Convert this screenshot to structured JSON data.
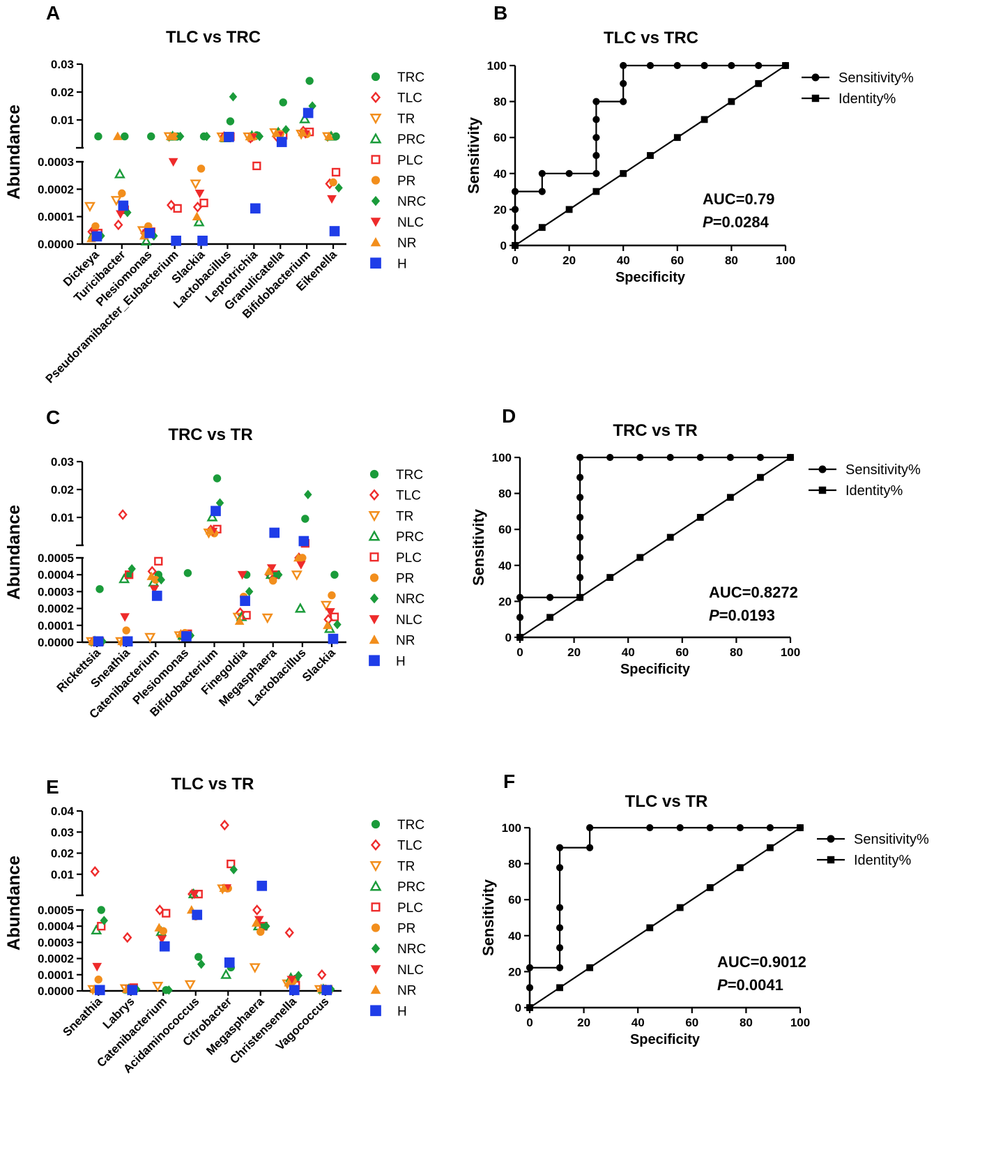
{
  "colors": {
    "TRC": "#1a9b3a",
    "TLC": "#ee2b2b",
    "TR": "#f28e1c",
    "PRC": "#1a9b3a",
    "PLC": "#ee2b2b",
    "PR": "#f28e1c",
    "NRC": "#1a9b3a",
    "NLC": "#ee2b2b",
    "NR": "#f28e1c",
    "H": "#1f3de8",
    "axis": "#000000"
  },
  "legend_groups": [
    {
      "name": "TRC",
      "shape": "circle-filled"
    },
    {
      "name": "TLC",
      "shape": "diamond-open"
    },
    {
      "name": "TR",
      "shape": "triangle-down-open"
    },
    {
      "name": "PRC",
      "shape": "triangle-up-open"
    },
    {
      "name": "PLC",
      "shape": "square-open"
    },
    {
      "name": "PR",
      "shape": "circle-filled"
    },
    {
      "name": "NRC",
      "shape": "diamond-filled"
    },
    {
      "name": "NLC",
      "shape": "triangle-down-filled"
    },
    {
      "name": "NR",
      "shape": "triangle-up-filled"
    },
    {
      "name": "H",
      "shape": "square-filled"
    }
  ],
  "panels": {
    "A": {
      "letter": "A",
      "title": "TLC vs TRC"
    },
    "B": {
      "letter": "B",
      "title": "TLC vs TRC",
      "auc": "AUC=0.79",
      "p_prefix": "P",
      "p_value": "=0.0284"
    },
    "C": {
      "letter": "C",
      "title": "TRC vs TR"
    },
    "D": {
      "letter": "D",
      "title": "TRC vs TR",
      "auc": "AUC=0.8272",
      "p_prefix": "P",
      "p_value": "=0.0193"
    },
    "E": {
      "letter": "E",
      "title": "TLC vs TR"
    },
    "F": {
      "letter": "F",
      "title": "TLC vs TR",
      "auc": "AUC=0.9012",
      "p_prefix": "P",
      "p_value": "=0.0041"
    }
  },
  "chart_data": [
    {
      "panel": "A",
      "type": "scatter",
      "title": "TLC vs TRC",
      "ylabel": "Abundance",
      "categories": [
        "Dickeya",
        "Turicibacter",
        "Plesiomonas",
        "Pseudoramibacter_Eubacterium",
        "Slackia",
        "Lactobacillus",
        "Leptotrichia",
        "Granulicatella",
        "Bifidobacterium",
        "Eikenella"
      ],
      "y_axis": {
        "lower_range": [
          0,
          0.0003
        ],
        "lower_ticks": [
          "0.0000",
          "0.0001",
          "0.0002",
          "0.0003"
        ],
        "upper_range": [
          0,
          0.03
        ],
        "upper_ticks": [
          "0.01",
          "0.02",
          "0.03"
        ]
      },
      "series": {
        "TRC": [
          0.0041,
          0.0041,
          0.0041,
          0.0041,
          0.0041,
          0.0095,
          0.0045,
          0.0163,
          0.024,
          0.0041
        ],
        "TLC": [
          4.5e-05,
          7e-05,
          4e-05,
          0.000142,
          0.000135,
          0.004,
          0.0035,
          0.004,
          0.006,
          0.00022
        ],
        "TR": [
          0.000138,
          0.00016,
          5e-05,
          0.0041,
          0.00022,
          0.004,
          0.004,
          0.0055,
          0.005,
          0.0041
        ],
        "PRC": [
          3.5e-05,
          0.000255,
          1e-05,
          0.0041,
          8e-05,
          0.0035,
          0.0043,
          0.0055,
          0.0103,
          0.0041
        ],
        "PLC": [
          4e-05,
          0.000125,
          4.5e-05,
          0.00013,
          0.00015,
          0.004,
          0.000285,
          0.0045,
          0.0057,
          0.000262
        ],
        "PR": [
          6.5e-05,
          0.000185,
          6.5e-05,
          0.0041,
          0.000275,
          0.0037,
          0.004,
          0.005,
          0.0049,
          0.000225
        ],
        "NRC": [
          3e-05,
          0.000115,
          3e-05,
          0.0041,
          0.0041,
          0.0183,
          0.0041,
          0.0065,
          0.015,
          0.000205
        ],
        "NLC": [
          4e-05,
          0.00011,
          4e-05,
          0.0003,
          0.000185,
          0.0041,
          0.0038,
          0.0045,
          0.005,
          0.000165
        ],
        "NR": [
          2e-05,
          0.0041,
          3e-05,
          0.0041,
          0.0001,
          0.0035,
          0.004,
          0.0052,
          0.0055,
          0.0041
        ],
        "H": [
          2.8e-05,
          0.00014,
          4e-05,
          1.2e-05,
          1.2e-05,
          0.0039,
          0.00013,
          0.0021,
          0.0125,
          4.7e-05
        ]
      }
    },
    {
      "panel": "B",
      "type": "line",
      "title": "TLC vs TRC",
      "xlabel": "Specificity",
      "ylabel": "Sensitivity",
      "xlim": [
        0,
        100
      ],
      "ylim": [
        0,
        100
      ],
      "ticks": [
        "0",
        "20",
        "40",
        "60",
        "80",
        "100"
      ],
      "legend": [
        "Sensitivity%",
        "Identity%"
      ],
      "roc": [
        [
          0,
          0
        ],
        [
          0,
          10
        ],
        [
          0,
          20
        ],
        [
          0,
          30
        ],
        [
          10,
          30
        ],
        [
          10,
          40
        ],
        [
          20,
          40
        ],
        [
          30,
          40
        ],
        [
          30,
          50
        ],
        [
          30,
          60
        ],
        [
          30,
          70
        ],
        [
          30,
          80
        ],
        [
          40,
          80
        ],
        [
          40,
          90
        ],
        [
          40,
          100
        ],
        [
          50,
          100
        ],
        [
          60,
          100
        ],
        [
          70,
          100
        ],
        [
          80,
          100
        ],
        [
          90,
          100
        ],
        [
          100,
          100
        ]
      ],
      "identity": [
        [
          0,
          0
        ],
        [
          10,
          10
        ],
        [
          20,
          20
        ],
        [
          30,
          30
        ],
        [
          40,
          40
        ],
        [
          50,
          50
        ],
        [
          60,
          60
        ],
        [
          70,
          70
        ],
        [
          80,
          80
        ],
        [
          90,
          90
        ],
        [
          100,
          100
        ]
      ]
    },
    {
      "panel": "C",
      "type": "scatter",
      "title": "TRC vs TR",
      "ylabel": "Abundance",
      "categories": [
        "Rickettsia",
        "Sneathia",
        "Catenibacterium",
        "Plesiomonas",
        "Bifidobacterium",
        "Finegoldia",
        "Megasphaera",
        "Lactobacillus",
        "Slackia"
      ],
      "y_axis": {
        "lower_range": [
          0,
          0.0005
        ],
        "lower_ticks": [
          "0.0000",
          "0.0001",
          "0.0002",
          "0.0003",
          "0.0004",
          "0.0005"
        ],
        "upper_range": [
          0,
          0.03
        ],
        "upper_ticks": [
          "0.01",
          "0.02",
          "0.03"
        ]
      },
      "series": {
        "TRC": [
          0.000315,
          0.0004,
          0.0004,
          0.00041,
          0.024,
          0.0004,
          0.0004,
          0.0095,
          0.0004
        ],
        "TLC": [
          5e-06,
          0.011,
          0.00042,
          4e-05,
          0.0055,
          0.000175,
          0.0004,
          0.0005,
          0.000135
        ],
        "TR": [
          5e-06,
          5e-06,
          3e-05,
          4e-05,
          0.0045,
          0.00015,
          0.000145,
          0.0004,
          0.00022
        ],
        "PRC": [
          5e-06,
          0.000375,
          0.000355,
          4e-05,
          0.0101,
          0.00015,
          0.0004,
          0.0002,
          8e-05
        ],
        "PLC": [
          5e-06,
          0.0004,
          0.00048,
          5e-05,
          0.0058,
          0.00016,
          0.0004,
          0.0007,
          0.00015
        ],
        "PR": [
          5e-06,
          7e-05,
          0.00037,
          5.5e-05,
          0.0043,
          0.00027,
          0.000365,
          0.0005,
          0.000278
        ],
        "NRC": [
          5e-06,
          0.000435,
          0.00037,
          4e-05,
          0.0152,
          0.0003,
          0.0004,
          0.0182,
          0.000105
        ],
        "NLC": [
          5e-06,
          0.00015,
          0.000315,
          4.5e-05,
          0.005,
          0.0004,
          0.00044,
          0.00046,
          0.00018
        ],
        "NR": [
          5e-06,
          5e-06,
          0.00039,
          5e-05,
          0.0052,
          0.000125,
          0.00042,
          0.0005,
          0.0001
        ],
        "H": [
          5e-06,
          5e-06,
          0.000275,
          3.5e-05,
          0.0123,
          0.000245,
          0.0045,
          0.0015,
          2e-05
        ]
      }
    },
    {
      "panel": "D",
      "type": "line",
      "title": "TRC vs TR",
      "xlabel": "Specificity",
      "ylabel": "Sensitivity",
      "xlim": [
        0,
        100
      ],
      "ylim": [
        0,
        100
      ],
      "ticks": [
        "0",
        "20",
        "40",
        "60",
        "80",
        "100"
      ],
      "legend": [
        "Sensitivity%",
        "Identity%"
      ],
      "roc": [
        [
          0,
          0
        ],
        [
          0,
          11.1
        ],
        [
          0,
          22.2
        ],
        [
          11.1,
          22.2
        ],
        [
          22.2,
          22.2
        ],
        [
          22.2,
          33.3
        ],
        [
          22.2,
          44.4
        ],
        [
          22.2,
          55.6
        ],
        [
          22.2,
          66.7
        ],
        [
          22.2,
          77.8
        ],
        [
          22.2,
          88.9
        ],
        [
          22.2,
          100
        ],
        [
          33.3,
          100
        ],
        [
          44.4,
          100
        ],
        [
          55.6,
          100
        ],
        [
          66.7,
          100
        ],
        [
          77.8,
          100
        ],
        [
          88.9,
          100
        ],
        [
          100,
          100
        ]
      ],
      "identity": [
        [
          0,
          0
        ],
        [
          11.1,
          11.1
        ],
        [
          22.2,
          22.2
        ],
        [
          33.3,
          33.3
        ],
        [
          44.4,
          44.4
        ],
        [
          55.6,
          55.6
        ],
        [
          66.7,
          66.7
        ],
        [
          77.8,
          77.8
        ],
        [
          88.9,
          88.9
        ],
        [
          100,
          100
        ]
      ]
    },
    {
      "panel": "E",
      "type": "scatter",
      "title": "TLC vs TR",
      "ylabel": "Abundance",
      "categories": [
        "Sneathia",
        "Labrys",
        "Catenibacterium",
        "Acidaminococcus",
        "Citrobacter",
        "Megasphaera",
        "Christensenella",
        "Vagococcus"
      ],
      "y_axis": {
        "lower_range": [
          0,
          0.0005
        ],
        "lower_ticks": [
          "0.0000",
          "0.0001",
          "0.0002",
          "0.0003",
          "0.0004",
          "0.0005"
        ],
        "upper_range": [
          0,
          0.04
        ],
        "upper_ticks": [
          "0.01",
          "0.02",
          "0.03",
          "0.04"
        ]
      },
      "series": {
        "TRC": [
          0.0005,
          1e-05,
          5e-06,
          0.00021,
          0.000145,
          0.0004,
          7.5e-05,
          1e-05
        ],
        "TLC": [
          0.0113,
          0.00033,
          0.0005,
          0.0006,
          0.0333,
          0.0005,
          0.00036,
          0.0001
        ],
        "TR": [
          1e-05,
          1.5e-05,
          3e-05,
          4e-05,
          0.0032,
          0.000145,
          4.5e-05,
          1e-05
        ],
        "PRC": [
          0.000375,
          1e-05,
          0.000365,
          0.0006,
          0.0001,
          0.0004,
          8e-05,
          1e-05
        ],
        "PLC": [
          0.0004,
          2e-05,
          0.00048,
          0.0006,
          0.0149,
          0.0004,
          3.5e-05,
          1e-05
        ],
        "PR": [
          7e-05,
          1e-05,
          0.00037,
          0.00046,
          0.0033,
          0.000365,
          6e-05,
          1.5e-05
        ],
        "NRC": [
          0.000435,
          1e-05,
          5e-06,
          0.000165,
          0.0122,
          0.0004,
          9.5e-05,
          1e-05
        ],
        "NLC": [
          0.00015,
          1e-05,
          0.00032,
          0.00052,
          0.0035,
          0.00044,
          7e-05,
          1e-05
        ],
        "NR": [
          1e-05,
          1e-05,
          0.00039,
          0.0005,
          0.0034,
          0.00042,
          5e-05,
          1.5e-05
        ],
        "H": [
          5e-06,
          5e-06,
          0.000275,
          0.00047,
          0.000175,
          0.0045,
          5e-06,
          5e-06
        ]
      }
    },
    {
      "panel": "F",
      "type": "line",
      "title": "TLC vs TR",
      "xlabel": "Specificity",
      "ylabel": "Sensitivity",
      "xlim": [
        0,
        100
      ],
      "ylim": [
        0,
        100
      ],
      "ticks": [
        "0",
        "20",
        "40",
        "60",
        "80",
        "100"
      ],
      "legend": [
        "Sensitivity%",
        "Identity%"
      ],
      "roc": [
        [
          0,
          0
        ],
        [
          0,
          11.1
        ],
        [
          0,
          22.2
        ],
        [
          11.1,
          22.2
        ],
        [
          11.1,
          33.3
        ],
        [
          11.1,
          44.4
        ],
        [
          11.1,
          55.6
        ],
        [
          11.1,
          77.8
        ],
        [
          11.1,
          88.9
        ],
        [
          22.2,
          88.9
        ],
        [
          22.2,
          100
        ],
        [
          44.4,
          100
        ],
        [
          55.6,
          100
        ],
        [
          66.7,
          100
        ],
        [
          77.8,
          100
        ],
        [
          88.9,
          100
        ],
        [
          100,
          100
        ]
      ],
      "identity": [
        [
          0,
          0
        ],
        [
          11.1,
          11.1
        ],
        [
          22.2,
          22.2
        ],
        [
          44.4,
          44.4
        ],
        [
          55.6,
          55.6
        ],
        [
          66.7,
          66.7
        ],
        [
          77.8,
          77.8
        ],
        [
          88.9,
          88.9
        ],
        [
          100,
          100
        ]
      ]
    }
  ]
}
